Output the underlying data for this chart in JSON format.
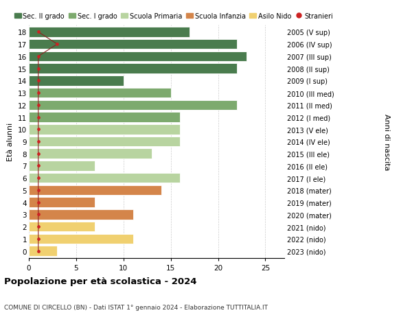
{
  "ages": [
    18,
    17,
    16,
    15,
    14,
    13,
    12,
    11,
    10,
    9,
    8,
    7,
    6,
    5,
    4,
    3,
    2,
    1,
    0
  ],
  "right_labels": [
    "2005 (V sup)",
    "2006 (IV sup)",
    "2007 (III sup)",
    "2008 (II sup)",
    "2009 (I sup)",
    "2010 (III med)",
    "2011 (II med)",
    "2012 (I med)",
    "2013 (V ele)",
    "2014 (IV ele)",
    "2015 (III ele)",
    "2016 (II ele)",
    "2017 (I ele)",
    "2018 (mater)",
    "2019 (mater)",
    "2020 (mater)",
    "2021 (nido)",
    "2022 (nido)",
    "2023 (nido)"
  ],
  "bar_values": [
    17,
    22,
    23,
    22,
    10,
    15,
    22,
    16,
    16,
    16,
    13,
    7,
    16,
    14,
    7,
    11,
    7,
    11,
    3
  ],
  "bar_colors": [
    "#4a7c4e",
    "#4a7c4e",
    "#4a7c4e",
    "#4a7c4e",
    "#4a7c4e",
    "#7daa6e",
    "#7daa6e",
    "#7daa6e",
    "#b8d4a0",
    "#b8d4a0",
    "#b8d4a0",
    "#b8d4a0",
    "#b8d4a0",
    "#d4854a",
    "#d4854a",
    "#d4854a",
    "#f0d070",
    "#f0d070",
    "#f0d070"
  ],
  "stranieri_ages": [
    18,
    17,
    16,
    15,
    14,
    13,
    12,
    11,
    10,
    9,
    8,
    7,
    6,
    5,
    4,
    3,
    2,
    1,
    0
  ],
  "stranieri_x": [
    1,
    3,
    1,
    1,
    1,
    1,
    1,
    1,
    1,
    1,
    1,
    1,
    1,
    1,
    1,
    1,
    1,
    1,
    1
  ],
  "legend_labels": [
    "Sec. II grado",
    "Sec. I grado",
    "Scuola Primaria",
    "Scuola Infanzia",
    "Asilo Nido",
    "Stranieri"
  ],
  "legend_colors": [
    "#4a7c4e",
    "#7daa6e",
    "#b8d4a0",
    "#d4854a",
    "#f0d070",
    "#cc2222"
  ],
  "title": "Popolazione per età scolastica - 2024",
  "subtitle": "COMUNE DI CIRCELLO (BN) - Dati ISTAT 1° gennaio 2024 - Elaborazione TUTTITALIA.IT",
  "xlabel_right": "Anni di nascita",
  "ylabel": "Età alunni",
  "xlim": [
    0,
    27
  ],
  "xticks": [
    0,
    5,
    10,
    15,
    20,
    25
  ],
  "background_color": "#ffffff"
}
